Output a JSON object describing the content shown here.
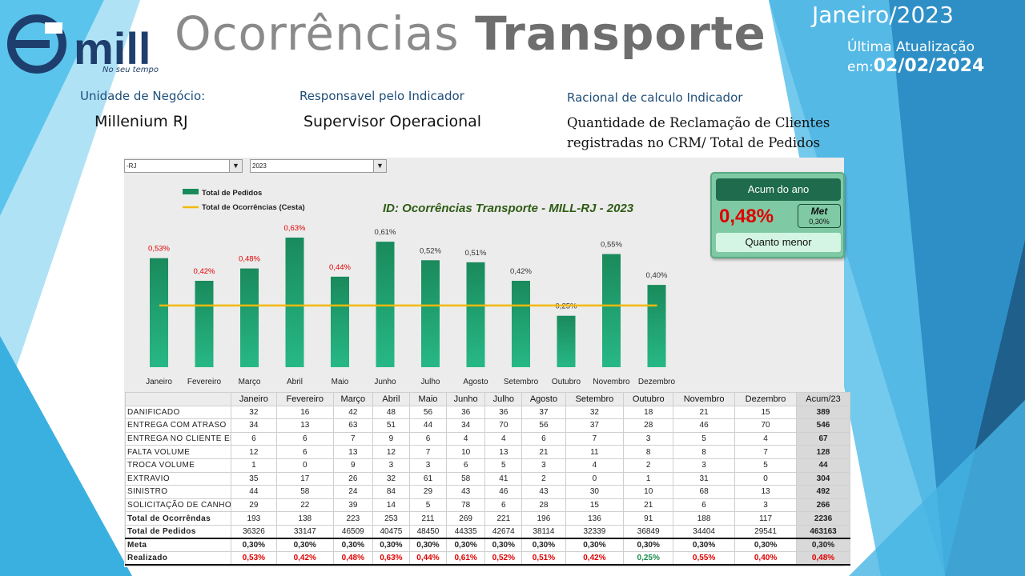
{
  "header": {
    "logo_text": "mill",
    "logo_tagline": "No seu tempo",
    "title_light": "Ocorrências",
    "title_strong": "Transporte",
    "period": "Janeiro/2023",
    "update_label": "Última Atualização",
    "update_prefix": "em:",
    "update_date": "02/02/2024"
  },
  "info": {
    "unit_label": "Unidade de Negócio:",
    "unit_value": "Millenium RJ",
    "responsible_label": "Responsavel pelo Indicador",
    "responsible_value": "Supervisor Operacional",
    "rational_label": "Racional de calculo Indicador",
    "rational_line1": "Quantidade de Reclamação de Clientes",
    "rational_line2": "registradas no CRM/ Total de Pedidos"
  },
  "filters": {
    "unit_select": "-RJ",
    "year_select": "2023"
  },
  "kpi": {
    "header": "Acum do ano",
    "value": "0,48%",
    "meta_label": "Met",
    "meta_value": "0,30%",
    "footer": "Quanto menor"
  },
  "colors": {
    "bar": "#1a8a5c",
    "meta_line": "#f2b90c",
    "label_red": "#e00000",
    "label_gray": "#333333",
    "title_green": "#2e5c14"
  },
  "chart_data": {
    "type": "bar",
    "title": "ID: Ocorrências Transporte - MILL-RJ - 2023",
    "legend": [
      "Total de Pedidos",
      "Total de Ocorrências (Cesta)"
    ],
    "legend_position": "top-left",
    "categories": [
      "Janeiro",
      "Fevereiro",
      "Março",
      "Abril",
      "Maio",
      "Junho",
      "Julho",
      "Agosto",
      "Setembro",
      "Outubro",
      "Novembro",
      "Dezembro"
    ],
    "values": [
      0.53,
      0.42,
      0.48,
      0.63,
      0.44,
      0.61,
      0.52,
      0.51,
      0.42,
      0.25,
      0.55,
      0.4
    ],
    "value_labels": [
      "0,53%",
      "0,42%",
      "0,48%",
      "0,63%",
      "0,44%",
      "0,61%",
      "0,52%",
      "0,51%",
      "0,42%",
      "0,25%",
      "0,55%",
      "0,40%"
    ],
    "label_colors": [
      "red",
      "red",
      "red",
      "red",
      "red",
      "gray",
      "gray",
      "gray",
      "gray",
      "gray",
      "gray",
      "gray"
    ],
    "meta_value": 0.3,
    "ylim": [
      0,
      0.7
    ],
    "grid": false
  },
  "table": {
    "headers": [
      "",
      "Janeiro",
      "Fevereiro",
      "Março",
      "Abril",
      "Maio",
      "Junho",
      "Julho",
      "Agosto",
      "Setembro",
      "Outubro",
      "Novembro",
      "Dezembro",
      "Acum/23"
    ],
    "rows": [
      {
        "label": "DANIFICADO",
        "values": [
          "32",
          "16",
          "42",
          "48",
          "56",
          "36",
          "36",
          "37",
          "32",
          "18",
          "21",
          "15"
        ],
        "acc": "389"
      },
      {
        "label": "ENTREGA COM ATRASO",
        "values": [
          "34",
          "13",
          "63",
          "51",
          "44",
          "34",
          "70",
          "56",
          "37",
          "28",
          "46",
          "70"
        ],
        "acc": "546"
      },
      {
        "label": "ENTREGA NO CLIENTE ERRADO",
        "values": [
          "6",
          "6",
          "7",
          "9",
          "6",
          "4",
          "4",
          "6",
          "7",
          "3",
          "5",
          "4"
        ],
        "acc": "67"
      },
      {
        "label": "FALTA VOLUME",
        "values": [
          "12",
          "6",
          "13",
          "12",
          "7",
          "10",
          "13",
          "21",
          "11",
          "8",
          "8",
          "7"
        ],
        "acc": "128"
      },
      {
        "label": "TROCA VOLUME",
        "values": [
          "1",
          "0",
          "9",
          "3",
          "3",
          "6",
          "5",
          "3",
          "4",
          "2",
          "3",
          "5"
        ],
        "acc": "44"
      },
      {
        "label": "EXTRAVIO",
        "values": [
          "35",
          "17",
          "26",
          "32",
          "61",
          "58",
          "41",
          "2",
          "0",
          "1",
          "31",
          "0"
        ],
        "acc": "304"
      },
      {
        "label": "SINISTRO",
        "values": [
          "44",
          "58",
          "24",
          "84",
          "29",
          "43",
          "46",
          "43",
          "30",
          "10",
          "68",
          "13"
        ],
        "acc": "492"
      },
      {
        "label": "SOLICITAÇÃO DE CANHOTO",
        "values": [
          "29",
          "22",
          "39",
          "14",
          "5",
          "78",
          "6",
          "28",
          "15",
          "21",
          "6",
          "3"
        ],
        "acc": "266"
      }
    ],
    "total_ocorrencias": {
      "label": "Total de Ocorrêndas",
      "values": [
        "193",
        "138",
        "223",
        "253",
        "211",
        "269",
        "221",
        "196",
        "136",
        "91",
        "188",
        "117"
      ],
      "acc": "2236"
    },
    "total_pedidos": {
      "label": "Total de Pedidos",
      "values": [
        "36326",
        "33147",
        "46509",
        "40475",
        "48450",
        "44335",
        "42674",
        "38114",
        "32339",
        "36849",
        "34404",
        "29541"
      ],
      "acc": "463163"
    },
    "meta": {
      "label": "Meta",
      "values": [
        "0,30%",
        "0,30%",
        "0,30%",
        "0,30%",
        "0,30%",
        "0,30%",
        "0,30%",
        "0,30%",
        "0,30%",
        "0,30%",
        "0,30%",
        "0,30%"
      ],
      "acc": "0,30%"
    },
    "realizado": {
      "label": "Realizado",
      "values": [
        "0,53%",
        "0,42%",
        "0,48%",
        "0,63%",
        "0,44%",
        "0,61%",
        "0,52%",
        "0,51%",
        "0,42%",
        "0,25%",
        "0,55%",
        "0,40%"
      ],
      "acc": "0,48%",
      "colors": [
        "red",
        "red",
        "red",
        "red",
        "red",
        "red",
        "red",
        "red",
        "red",
        "green",
        "red",
        "red"
      ],
      "acc_color": "red"
    }
  }
}
